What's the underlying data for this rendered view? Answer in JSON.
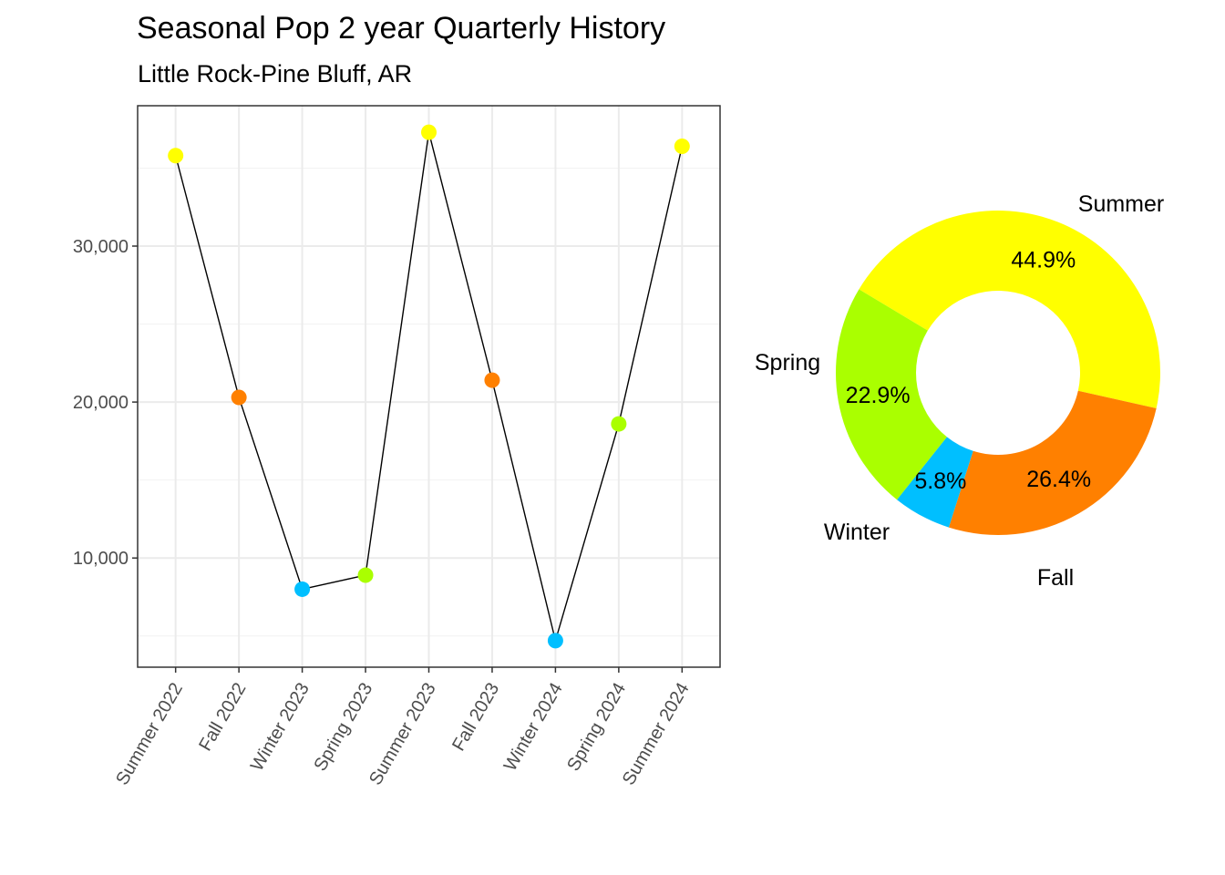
{
  "title": "Seasonal Pop 2 year Quarterly History",
  "subtitle": "Little Rock-Pine Bluff, AR",
  "season_colors": {
    "Summer": "#FFFF00",
    "Fall": "#FF8000",
    "Winter": "#00BFFF",
    "Spring": "#AAFF00"
  },
  "chart_data": [
    {
      "type": "line",
      "title": "",
      "xlabel": "",
      "ylabel": "",
      "categories": [
        "Summer 2022",
        "Fall 2022",
        "Winter 2023",
        "Spring 2023",
        "Summer 2023",
        "Fall 2023",
        "Winter 2024",
        "Spring 2024",
        "Summer 2024"
      ],
      "seasons": [
        "Summer",
        "Fall",
        "Winter",
        "Spring",
        "Summer",
        "Fall",
        "Winter",
        "Spring",
        "Summer"
      ],
      "values": [
        35800,
        20300,
        8000,
        8900,
        37300,
        21400,
        4700,
        18600,
        36400
      ],
      "ylim": [
        3000,
        39000
      ],
      "yticks": [
        10000,
        20000,
        30000
      ],
      "ytick_labels": [
        "10,000",
        "20,000",
        "30,000"
      ],
      "grid": true,
      "line_color": "#000000"
    },
    {
      "type": "pie",
      "donut": true,
      "slices": [
        {
          "label": "Summer",
          "value": 44.9,
          "pct_label": "44.9%"
        },
        {
          "label": "Fall",
          "value": 26.4,
          "pct_label": "26.4%"
        },
        {
          "label": "Winter",
          "value": 5.8,
          "pct_label": "5.8%"
        },
        {
          "label": "Spring",
          "value": 22.9,
          "pct_label": "22.9%"
        }
      ]
    }
  ]
}
